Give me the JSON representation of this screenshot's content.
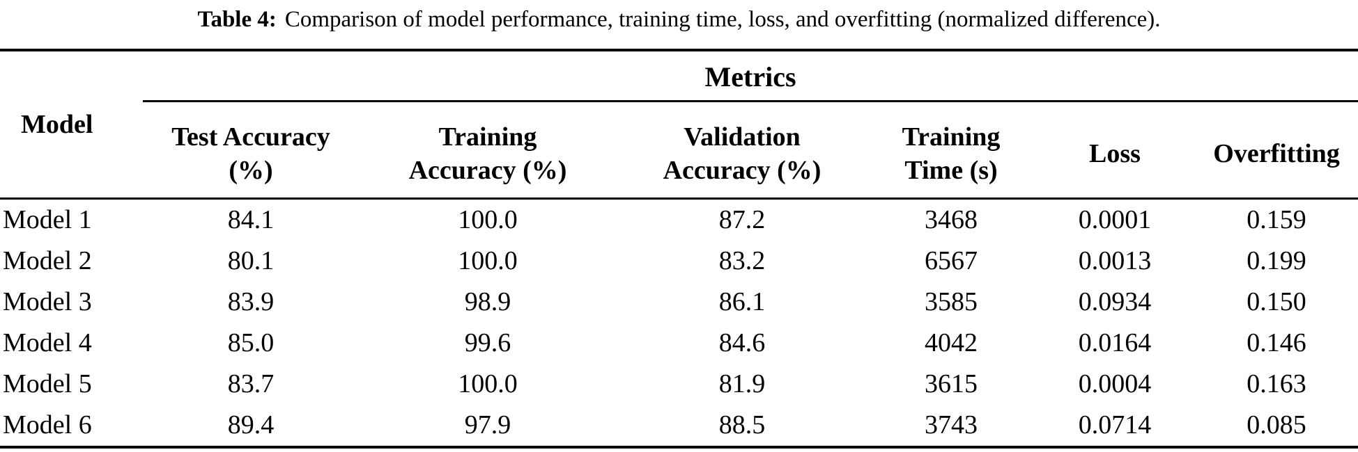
{
  "caption": {
    "label": "Table 4:",
    "text": "Comparison of model performance, training time, loss, and overfitting (normalized difference)."
  },
  "table": {
    "group_header": "Metrics",
    "columns": [
      {
        "key": "model",
        "lines": [
          "Model"
        ]
      },
      {
        "key": "test-accuracy",
        "lines": [
          "Test Accuracy",
          "(%)"
        ]
      },
      {
        "key": "training-accuracy",
        "lines": [
          "Training",
          "Accuracy (%)"
        ]
      },
      {
        "key": "validation-accuracy",
        "lines": [
          "Validation",
          "Accuracy (%)"
        ]
      },
      {
        "key": "training-time",
        "lines": [
          "Training",
          "Time (s)"
        ]
      },
      {
        "key": "loss",
        "lines": [
          "Loss"
        ]
      },
      {
        "key": "overfitting",
        "lines": [
          "Overfitting"
        ]
      }
    ],
    "rows": [
      [
        "Model 1",
        "84.1",
        "100.0",
        "87.2",
        "3468",
        "0.0001",
        "0.159"
      ],
      [
        "Model 2",
        "80.1",
        "100.0",
        "83.2",
        "6567",
        "0.0013",
        "0.199"
      ],
      [
        "Model 3",
        "83.9",
        "98.9",
        "86.1",
        "3585",
        "0.0934",
        "0.150"
      ],
      [
        "Model 4",
        "85.0",
        "99.6",
        "84.6",
        "4042",
        "0.0164",
        "0.146"
      ],
      [
        "Model 5",
        "83.7",
        "100.0",
        "81.9",
        "3615",
        "0.0004",
        "0.163"
      ],
      [
        "Model 6",
        "89.4",
        "97.9",
        "88.5",
        "3743",
        "0.0714",
        "0.085"
      ]
    ]
  },
  "colors": {
    "text": "#000000",
    "background": "#ffffff",
    "rule": "#000000"
  }
}
